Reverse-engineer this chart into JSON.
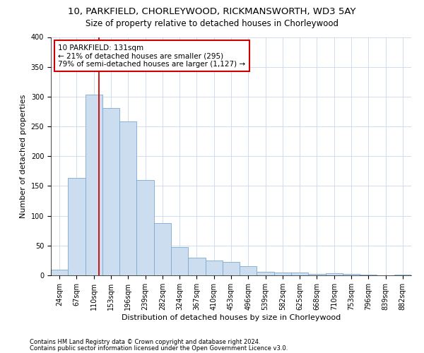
{
  "title1": "10, PARKFIELD, CHORLEYWOOD, RICKMANSWORTH, WD3 5AY",
  "title2": "Size of property relative to detached houses in Chorleywood",
  "xlabel": "Distribution of detached houses by size in Chorleywood",
  "ylabel": "Number of detached properties",
  "footnote1": "Contains HM Land Registry data © Crown copyright and database right 2024.",
  "footnote2": "Contains public sector information licensed under the Open Government Licence v3.0.",
  "bar_labels": [
    "24sqm",
    "67sqm",
    "110sqm",
    "153sqm",
    "196sqm",
    "239sqm",
    "282sqm",
    "324sqm",
    "367sqm",
    "410sqm",
    "453sqm",
    "496sqm",
    "539sqm",
    "582sqm",
    "625sqm",
    "668sqm",
    "710sqm",
    "753sqm",
    "796sqm",
    "839sqm",
    "882sqm"
  ],
  "bar_values": [
    10,
    163,
    303,
    281,
    258,
    160,
    88,
    47,
    30,
    25,
    22,
    15,
    6,
    5,
    5,
    2,
    4,
    2,
    1,
    0,
    1
  ],
  "bar_color": "#ccddf0",
  "bar_edge_color": "#7aaad0",
  "ylim": [
    0,
    400
  ],
  "yticks": [
    0,
    50,
    100,
    150,
    200,
    250,
    300,
    350,
    400
  ],
  "grid_color": "#c8d8ec",
  "annotation_line_color": "#cc0000",
  "annotation_box_color": "#cc0000",
  "annotation_text_line1": "10 PARKFIELD: 131sqm",
  "annotation_text_line2": "← 21% of detached houses are smaller (295)",
  "annotation_text_line3": "79% of semi-detached houses are larger (1,127) →",
  "bg_color": "#ffffff",
  "title_fontsize": 9.5,
  "subtitle_fontsize": 8.5,
  "axis_label_fontsize": 8,
  "tick_fontsize": 7,
  "annotation_fontsize": 7.5,
  "footnote_fontsize": 6,
  "red_line_x": 2.3
}
